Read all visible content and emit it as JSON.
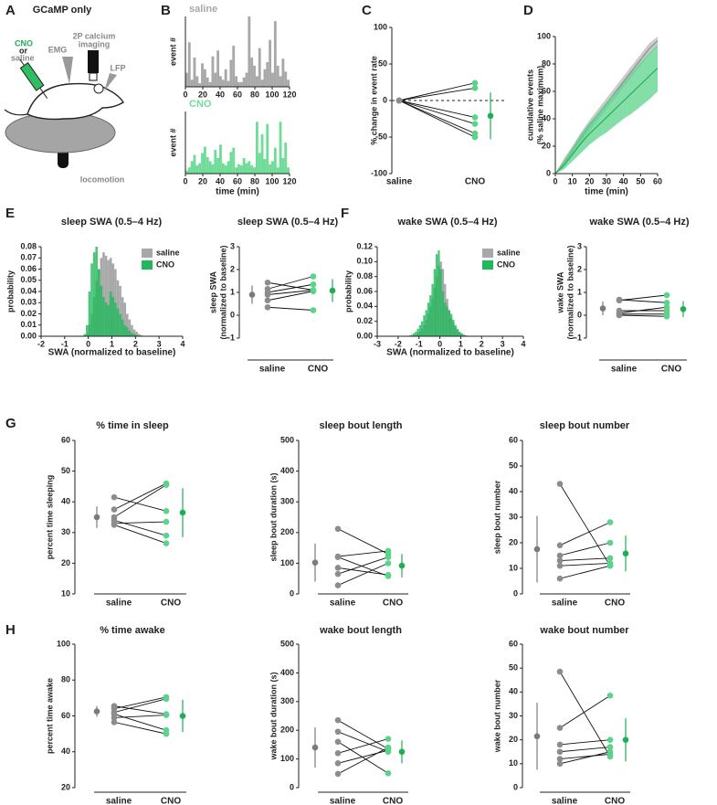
{
  "panel_labels": [
    "A",
    "B",
    "C",
    "D",
    "E",
    "F",
    "G",
    "H"
  ],
  "diagram": {
    "title": "GCaMP only",
    "drug": [
      "CNO",
      "or",
      "saline"
    ],
    "emg": "EMG",
    "imaging": [
      "2P calcium",
      "imaging"
    ],
    "lfp": "LFP",
    "locomotion": "locomotion"
  },
  "chart_data": [
    {
      "type": "histogram",
      "title": "saline",
      "ylabel": "event #",
      "xlim": [
        0,
        120
      ],
      "xticks": [
        0,
        20,
        40,
        60,
        80,
        100,
        120
      ],
      "ylim": [
        0,
        600
      ],
      "bins": [
        0,
        3,
        6,
        9,
        12,
        15,
        18,
        21,
        24,
        27,
        30,
        33,
        36,
        39,
        42,
        45,
        48,
        51,
        54,
        57,
        60,
        63,
        66,
        69,
        72,
        75,
        78,
        81,
        84,
        87,
        90,
        93,
        96,
        99,
        102,
        105,
        108,
        111,
        114,
        117,
        120
      ],
      "series": [
        {
          "color": "#a8a8a8",
          "values": [
            120,
            380,
            60,
            250,
            90,
            30,
            200,
            150,
            80,
            40,
            260,
            120,
            310,
            90,
            60,
            150,
            50,
            230,
            350,
            90,
            40,
            40,
            80,
            120,
            600,
            250,
            180,
            90,
            330,
            60,
            150,
            210,
            400,
            120,
            560,
            180,
            90,
            240,
            130,
            60
          ]
        }
      ]
    },
    {
      "type": "histogram",
      "title": "CNO",
      "ylabel": "event #",
      "xlabel": "time (min)",
      "xlim": [
        0,
        120
      ],
      "xticks": [
        0,
        20,
        40,
        60,
        80,
        100,
        120
      ],
      "ylim": [
        0,
        600
      ],
      "bins": [
        0,
        3,
        6,
        9,
        12,
        15,
        18,
        21,
        24,
        27,
        30,
        33,
        36,
        39,
        42,
        45,
        48,
        51,
        54,
        57,
        60,
        63,
        66,
        69,
        72,
        75,
        78,
        81,
        84,
        87,
        90,
        93,
        96,
        99,
        102,
        105,
        108,
        111,
        114,
        117,
        120
      ],
      "series": [
        {
          "color": "#6fdc98",
          "values": [
            30,
            60,
            120,
            180,
            80,
            100,
            200,
            260,
            160,
            120,
            90,
            230,
            150,
            280,
            100,
            80,
            120,
            210,
            250,
            60,
            90,
            80,
            150,
            100,
            120,
            80,
            60,
            500,
            200,
            380,
            140,
            480,
            90,
            120,
            250,
            60,
            500,
            150,
            300,
            60
          ]
        }
      ]
    },
    {
      "type": "paired",
      "ylabel": "% change in event rate",
      "categories": [
        "saline",
        "CNO"
      ],
      "ylim": [
        -100,
        100
      ],
      "yticks": [
        -100,
        -50,
        0,
        50,
        100
      ],
      "hline": 0,
      "groups": [
        {
          "color": "#8c8c8c",
          "values": [
            0,
            0,
            0,
            0,
            0,
            0
          ]
        },
        {
          "color": "#5ad48a",
          "mean_color": "#1fae55",
          "values": [
            24,
            17,
            -23,
            -32,
            -45,
            -50
          ],
          "mean": -21,
          "error": 32
        }
      ]
    },
    {
      "type": "band",
      "ylabel": [
        "cumulative events",
        "(% saline maximum)"
      ],
      "xlabel": "time (min)",
      "xlim": [
        0,
        60
      ],
      "xticks": [
        0,
        10,
        20,
        30,
        40,
        50,
        60
      ],
      "ylim": [
        0,
        100
      ],
      "yticks": [
        0,
        20,
        40,
        60,
        80,
        100
      ],
      "x": [
        0,
        5,
        10,
        15,
        20,
        25,
        30,
        35,
        40,
        45,
        50,
        55,
        60
      ],
      "series": [
        {
          "color": "#8c8c8c",
          "band_color": "#b8b8b8",
          "values": [
            0,
            8,
            17,
            26,
            35,
            43,
            51,
            59,
            67,
            75,
            83,
            91,
            97
          ],
          "lower": [
            0,
            5,
            14,
            22,
            31,
            39,
            47,
            55,
            63,
            71,
            79,
            87,
            93
          ],
          "upper": [
            0,
            11,
            20,
            30,
            39,
            47,
            55,
            63,
            71,
            79,
            87,
            95,
            100
          ]
        },
        {
          "color": "#1fae55",
          "band_color": "#5ad48a",
          "values": [
            0,
            6,
            14,
            22,
            29,
            35,
            41,
            47,
            53,
            59,
            65,
            71,
            77
          ],
          "lower": [
            0,
            3,
            9,
            15,
            21,
            26,
            30,
            35,
            40,
            44,
            49,
            54,
            60
          ],
          "upper": [
            0,
            9,
            19,
            29,
            37,
            44,
            52,
            59,
            66,
            74,
            81,
            88,
            94
          ]
        }
      ]
    },
    {
      "type": "histogram",
      "title": "sleep SWA (0.5–4 Hz)",
      "ylabel": "probability",
      "xlabel": "SWA (normalized to baseline)",
      "legend": "upper right",
      "xlim": [
        -2,
        4
      ],
      "xticks": [
        -2,
        -1,
        0,
        1,
        2,
        3,
        4
      ],
      "ylim": [
        0,
        0.08
      ],
      "yticks": [
        {
          "value": 0,
          "label": "0.00"
        },
        0.01,
        0.02,
        0.03,
        0.04,
        0.05,
        0.06,
        0.07,
        0.08
      ],
      "bins": [
        -0.2,
        -0.1,
        0,
        0.1,
        0.2,
        0.3,
        0.4,
        0.5,
        0.6,
        0.7,
        0.8,
        0.9,
        1,
        1.1,
        1.2,
        1.3,
        1.4,
        1.5,
        1.6,
        1.7,
        1.8,
        1.9,
        2,
        2.1,
        2.2,
        2.3,
        2.4
      ],
      "series": [
        {
          "name": "saline",
          "color": "#a8a8a8",
          "values": [
            0,
            0.002,
            0.01,
            0.02,
            0.035,
            0.05,
            0.06,
            0.07,
            0.075,
            0.072,
            0.068,
            0.07,
            0.065,
            0.06,
            0.05,
            0.045,
            0.035,
            0.03,
            0.02,
            0.015,
            0.01,
            0.006,
            0.004,
            0.002,
            0.001,
            0
          ]
        },
        {
          "name": "CNO",
          "color": "#1fb85a",
          "values": [
            0.002,
            0.01,
            0.04,
            0.065,
            0.075,
            0.08,
            0.06,
            0.045,
            0.035,
            0.03,
            0.028,
            0.04,
            0.035,
            0.03,
            0.025,
            0.02,
            0.015,
            0.01,
            0.008,
            0.005,
            0.003,
            0.002,
            0.001,
            0,
            0,
            0
          ]
        }
      ]
    },
    {
      "type": "paired",
      "title": "sleep SWA (0.5–4 Hz)",
      "ylabel": [
        "sleep SWA",
        "(normalized to baseline)"
      ],
      "categories": [
        "saline",
        "CNO"
      ],
      "ylim": [
        -1,
        3
      ],
      "yticks": [
        -1,
        0,
        1,
        2,
        3
      ],
      "groups": [
        {
          "color": "#8c8c8c",
          "mean_color": "#7a7a7a",
          "values": [
            1.43,
            1.15,
            1.0,
            0.9,
            0.65,
            0.35
          ],
          "mean": 0.9,
          "error": 0.4
        },
        {
          "color": "#5ad48a",
          "mean_color": "#1fae55",
          "values": [
            1.1,
            1.7,
            1.35,
            1.1,
            1.05,
            0.22
          ],
          "mean": 1.08,
          "error": 0.5
        }
      ]
    },
    {
      "type": "histogram",
      "title": "wake SWA (0.5–4 Hz)",
      "ylabel": "probability",
      "xlabel": "SWA (normalized to baseline)",
      "legend": "upper right",
      "xlim": [
        -3,
        4
      ],
      "xticks": [
        -3,
        -2,
        -1,
        0,
        1,
        2,
        3,
        4
      ],
      "ylim": [
        0,
        0.12
      ],
      "yticks": [
        {
          "value": 0,
          "label": "0.00"
        },
        0.02,
        0.04,
        0.06,
        0.08,
        {
          "value": 0.1,
          "label": "0.10"
        },
        0.12
      ],
      "bins": [
        -1.5,
        -1.4,
        -1.3,
        -1.2,
        -1.1,
        -1,
        -0.9,
        -0.8,
        -0.7,
        -0.6,
        -0.5,
        -0.4,
        -0.3,
        -0.2,
        -0.1,
        0,
        0.1,
        0.2,
        0.3,
        0.4,
        0.5,
        0.6,
        0.7,
        0.8,
        0.9,
        1,
        1.1,
        1.2,
        1.3,
        1.4,
        1.5
      ],
      "series": [
        {
          "name": "saline",
          "color": "#a8a8a8",
          "values": [
            0,
            0,
            0.001,
            0.002,
            0.004,
            0.006,
            0.01,
            0.015,
            0.022,
            0.03,
            0.04,
            0.05,
            0.065,
            0.08,
            0.095,
            0.1,
            0.09,
            0.07,
            0.05,
            0.035,
            0.025,
            0.018,
            0.012,
            0.008,
            0.005,
            0.003,
            0.002,
            0.001,
            0,
            0
          ]
        },
        {
          "name": "CNO",
          "color": "#1fb85a",
          "values": [
            0.001,
            0.002,
            0.004,
            0.006,
            0.01,
            0.015,
            0.02,
            0.028,
            0.035,
            0.045,
            0.055,
            0.07,
            0.09,
            0.11,
            0.115,
            0.09,
            0.06,
            0.045,
            0.04,
            0.035,
            0.03,
            0.022,
            0.015,
            0.01,
            0.006,
            0.004,
            0.002,
            0.001,
            0,
            0
          ]
        }
      ]
    },
    {
      "type": "paired",
      "title": "wake SWA (0.5–4 Hz)",
      "ylabel": [
        "wake SWA",
        "(normalized to baseline)"
      ],
      "categories": [
        "saline",
        "CNO"
      ],
      "ylim": [
        -1,
        3
      ],
      "yticks": [
        -1,
        0,
        1,
        2,
        3
      ],
      "groups": [
        {
          "color": "#8c8c8c",
          "mean_color": "#7a7a7a",
          "values": [
            0.68,
            0.65,
            0.2,
            0.1,
            0.05,
            0.0
          ],
          "mean": 0.3,
          "error": 0.3
        },
        {
          "color": "#5ad48a",
          "mean_color": "#1fae55",
          "values": [
            0.55,
            0.88,
            0.2,
            0.35,
            0.05,
            -0.05
          ],
          "mean": 0.27,
          "error": 0.35
        }
      ]
    },
    {
      "type": "paired",
      "title": "% time in sleep",
      "ylabel": "percent time sleeping",
      "categories": [
        "saline",
        "CNO"
      ],
      "ylim": [
        10,
        60
      ],
      "yticks": [
        10,
        20,
        30,
        40,
        50,
        60
      ],
      "groups": [
        {
          "color": "#8c8c8c",
          "mean_color": "#7a7a7a",
          "values": [
            41.5,
            37.5,
            35,
            34,
            33,
            32.5
          ],
          "mean": 35,
          "error": 3.5
        },
        {
          "color": "#5ad48a",
          "mean_color": "#1fae55",
          "values": [
            37,
            46,
            45.5,
            29,
            33.5,
            26.5
          ],
          "mean": 36.5,
          "error": 8
        }
      ]
    },
    {
      "type": "paired",
      "title": "sleep bout length",
      "ylabel": "sleep bout duration (s)",
      "categories": [
        "saline",
        "CNO"
      ],
      "ylim": [
        0,
        500
      ],
      "yticks": [
        0,
        100,
        200,
        300,
        400,
        500
      ],
      "groups": [
        {
          "color": "#8c8c8c",
          "mean_color": "#7a7a7a",
          "values": [
            212,
            122,
            120,
            85,
            65,
            28
          ],
          "mean": 102,
          "error": 62
        },
        {
          "color": "#5ad48a",
          "mean_color": "#1fae55",
          "values": [
            130,
            140,
            58,
            62,
            120,
            100
          ],
          "mean": 92,
          "error": 38
        }
      ]
    },
    {
      "type": "paired",
      "title": "sleep bout number",
      "ylabel": "sleep bout number",
      "categories": [
        "saline",
        "CNO"
      ],
      "ylim": [
        0,
        60
      ],
      "yticks": [
        0,
        10,
        20,
        30,
        40,
        50,
        60
      ],
      "groups": [
        {
          "color": "#8c8c8c",
          "mean_color": "#7a7a7a",
          "values": [
            43,
            19,
            15,
            13,
            11,
            6
          ],
          "mean": 17.5,
          "error": 13
        },
        {
          "color": "#5ad48a",
          "mean_color": "#1fae55",
          "values": [
            11,
            28,
            20,
            14,
            12,
            11
          ],
          "mean": 15.8,
          "error": 7
        }
      ]
    },
    {
      "type": "paired",
      "title": "% time awake",
      "ylabel": "percent time awake",
      "categories": [
        "saline",
        "CNO"
      ],
      "ylim": [
        20,
        100
      ],
      "yticks": [
        20,
        40,
        60,
        80,
        100
      ],
      "groups": [
        {
          "color": "#8c8c8c",
          "mean_color": "#7a7a7a",
          "values": [
            65.5,
            64,
            62,
            61,
            59,
            56.5
          ],
          "mean": 62.5,
          "error": 3
        },
        {
          "color": "#5ad48a",
          "mean_color": "#1fae55",
          "values": [
            61,
            70.5,
            69.5,
            52,
            60.5,
            50
          ],
          "mean": 60,
          "error": 9
        }
      ]
    },
    {
      "type": "paired",
      "title": "wake bout length",
      "ylabel": "wake bout duration (s)",
      "categories": [
        "saline",
        "CNO"
      ],
      "ylim": [
        0,
        500
      ],
      "yticks": [
        0,
        100,
        200,
        300,
        400,
        500
      ],
      "groups": [
        {
          "color": "#8c8c8c",
          "mean_color": "#7a7a7a",
          "values": [
            235,
            195,
            160,
            120,
            85,
            48
          ],
          "mean": 140,
          "error": 70
        },
        {
          "color": "#5ad48a",
          "mean_color": "#1fae55",
          "values": [
            135,
            125,
            50,
            170,
            130,
            140
          ],
          "mean": 125,
          "error": 40
        }
      ]
    },
    {
      "type": "paired",
      "title": "wake bout number",
      "ylabel": "wake bout number",
      "categories": [
        "saline",
        "CNO"
      ],
      "ylim": [
        0,
        60
      ],
      "yticks": [
        0,
        10,
        20,
        30,
        40,
        50,
        60
      ],
      "groups": [
        {
          "color": "#8c8c8c",
          "mean_color": "#7a7a7a",
          "values": [
            48.5,
            25,
            18,
            15,
            12,
            10
          ],
          "mean": 21.5,
          "error": 14
        },
        {
          "color": "#5ad48a",
          "mean_color": "#1fae55",
          "values": [
            13,
            38.5,
            20,
            17,
            14,
            15
          ],
          "mean": 20,
          "error": 9
        }
      ]
    }
  ]
}
